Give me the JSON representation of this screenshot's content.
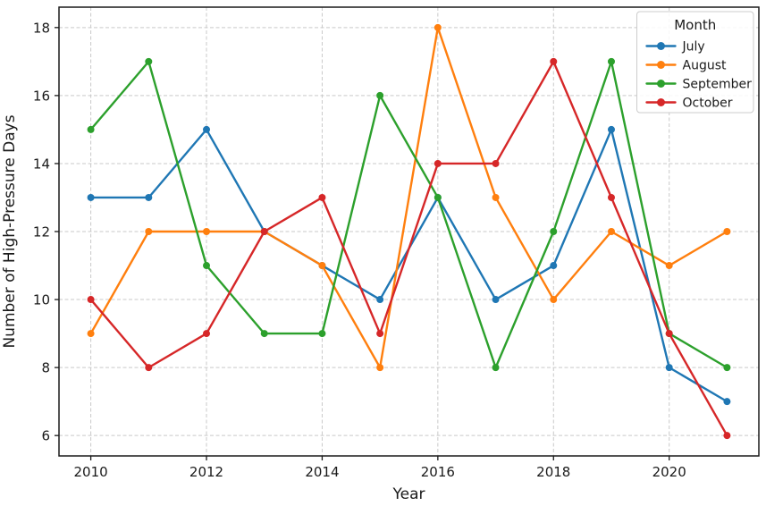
{
  "figure": {
    "xlabel": "Year",
    "ylabel": "Number of High-Pressure Days"
  },
  "chart_data": {
    "type": "line",
    "title": "",
    "xlabel": "Year",
    "ylabel": "Number of High-Pressure Days",
    "x": [
      2010,
      2011,
      2012,
      2013,
      2014,
      2015,
      2016,
      2017,
      2018,
      2019,
      2020,
      2021
    ],
    "series": [
      {
        "name": "July",
        "color": "#1f77b4",
        "values": [
          13,
          13,
          15,
          12,
          11,
          10,
          13,
          10,
          11,
          15,
          8,
          7
        ]
      },
      {
        "name": "August",
        "color": "#ff7f0e",
        "values": [
          9,
          12,
          12,
          12,
          11,
          8,
          18,
          13,
          10,
          12,
          11,
          12
        ]
      },
      {
        "name": "September",
        "color": "#2ca02c",
        "values": [
          15,
          17,
          11,
          9,
          9,
          16,
          13,
          8,
          12,
          17,
          9,
          8
        ]
      },
      {
        "name": "October",
        "color": "#d62728",
        "values": [
          10,
          8,
          9,
          12,
          13,
          9,
          14,
          14,
          17,
          13,
          9,
          6
        ]
      }
    ],
    "legend": {
      "title": "Month",
      "position": "upper right"
    },
    "xticks": [
      2010,
      2012,
      2014,
      2016,
      2018,
      2020
    ],
    "yticks": [
      6,
      8,
      10,
      12,
      14,
      16,
      18
    ],
    "xlim": [
      2009.45,
      2021.55
    ],
    "ylim": [
      5.4,
      18.6
    ],
    "grid": {
      "on": true,
      "linestyle": "dashed",
      "color": "#c9c9c9"
    },
    "marker": "circle",
    "line_width": 2.4,
    "marker_radius": 4,
    "spine_color": "#1a1a1a",
    "background": "#ffffff"
  }
}
